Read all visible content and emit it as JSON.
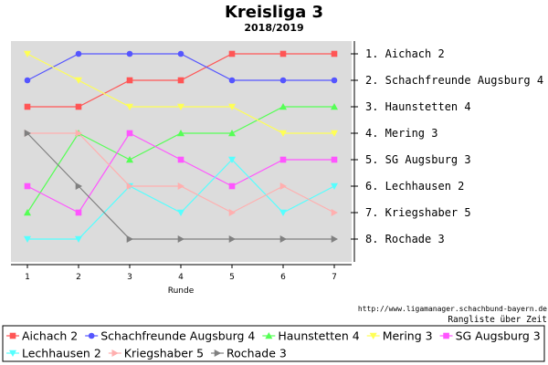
{
  "chart_data": {
    "type": "line",
    "title": "Kreisliga 3",
    "subtitle": "2018/2019",
    "xlabel": "Runde",
    "ylabel": "",
    "x": [
      1,
      2,
      3,
      4,
      5,
      6,
      7
    ],
    "ylim": [
      0.5,
      8.5
    ],
    "y_inverted": true,
    "grid": false,
    "legend_position": "bottom",
    "rank_labels": [
      "1. Aichach 2",
      "2. Schachfreunde Augsburg 4",
      "3. Haunstetten 4",
      "4. Mering 3",
      "5. SG Augsburg 3",
      "6. Lechhausen 2",
      "7. Kriegshaber 5",
      "8. Rochade 3"
    ],
    "source_note": "http://www.ligamanager.schachbund-bayern.de",
    "caption": "Rangliste über Zeit",
    "series": [
      {
        "name": "Aichach 2",
        "color": "#ff5555",
        "marker": "square",
        "values": [
          3,
          3,
          2,
          2,
          1,
          1,
          1
        ]
      },
      {
        "name": "Schachfreunde Augsburg 4",
        "color": "#5555ff",
        "marker": "circle",
        "values": [
          2,
          1,
          1,
          1,
          2,
          2,
          2
        ]
      },
      {
        "name": "Haunstetten 4",
        "color": "#55ff55",
        "marker": "triangle-up",
        "values": [
          7,
          4,
          5,
          4,
          4,
          3,
          3
        ]
      },
      {
        "name": "Mering 3",
        "color": "#ffff55",
        "marker": "triangle-down",
        "values": [
          1,
          2,
          3,
          3,
          3,
          4,
          4
        ]
      },
      {
        "name": "SG Augsburg 3",
        "color": "#ff55ff",
        "marker": "square",
        "values": [
          6,
          7,
          4,
          5,
          6,
          5,
          5
        ]
      },
      {
        "name": "Lechhausen 2",
        "color": "#55ffff",
        "marker": "triangle-down",
        "values": [
          8,
          8,
          6,
          7,
          5,
          7,
          6
        ]
      },
      {
        "name": "Kriegshaber 5",
        "color": "#ffafaf",
        "marker": "triangle-right",
        "values": [
          4,
          4,
          6,
          6,
          7,
          6,
          7
        ]
      },
      {
        "name": "Rochade 3",
        "color": "#808080",
        "marker": "triangle-right",
        "values": [
          4,
          6,
          8,
          8,
          8,
          8,
          8
        ]
      }
    ]
  }
}
